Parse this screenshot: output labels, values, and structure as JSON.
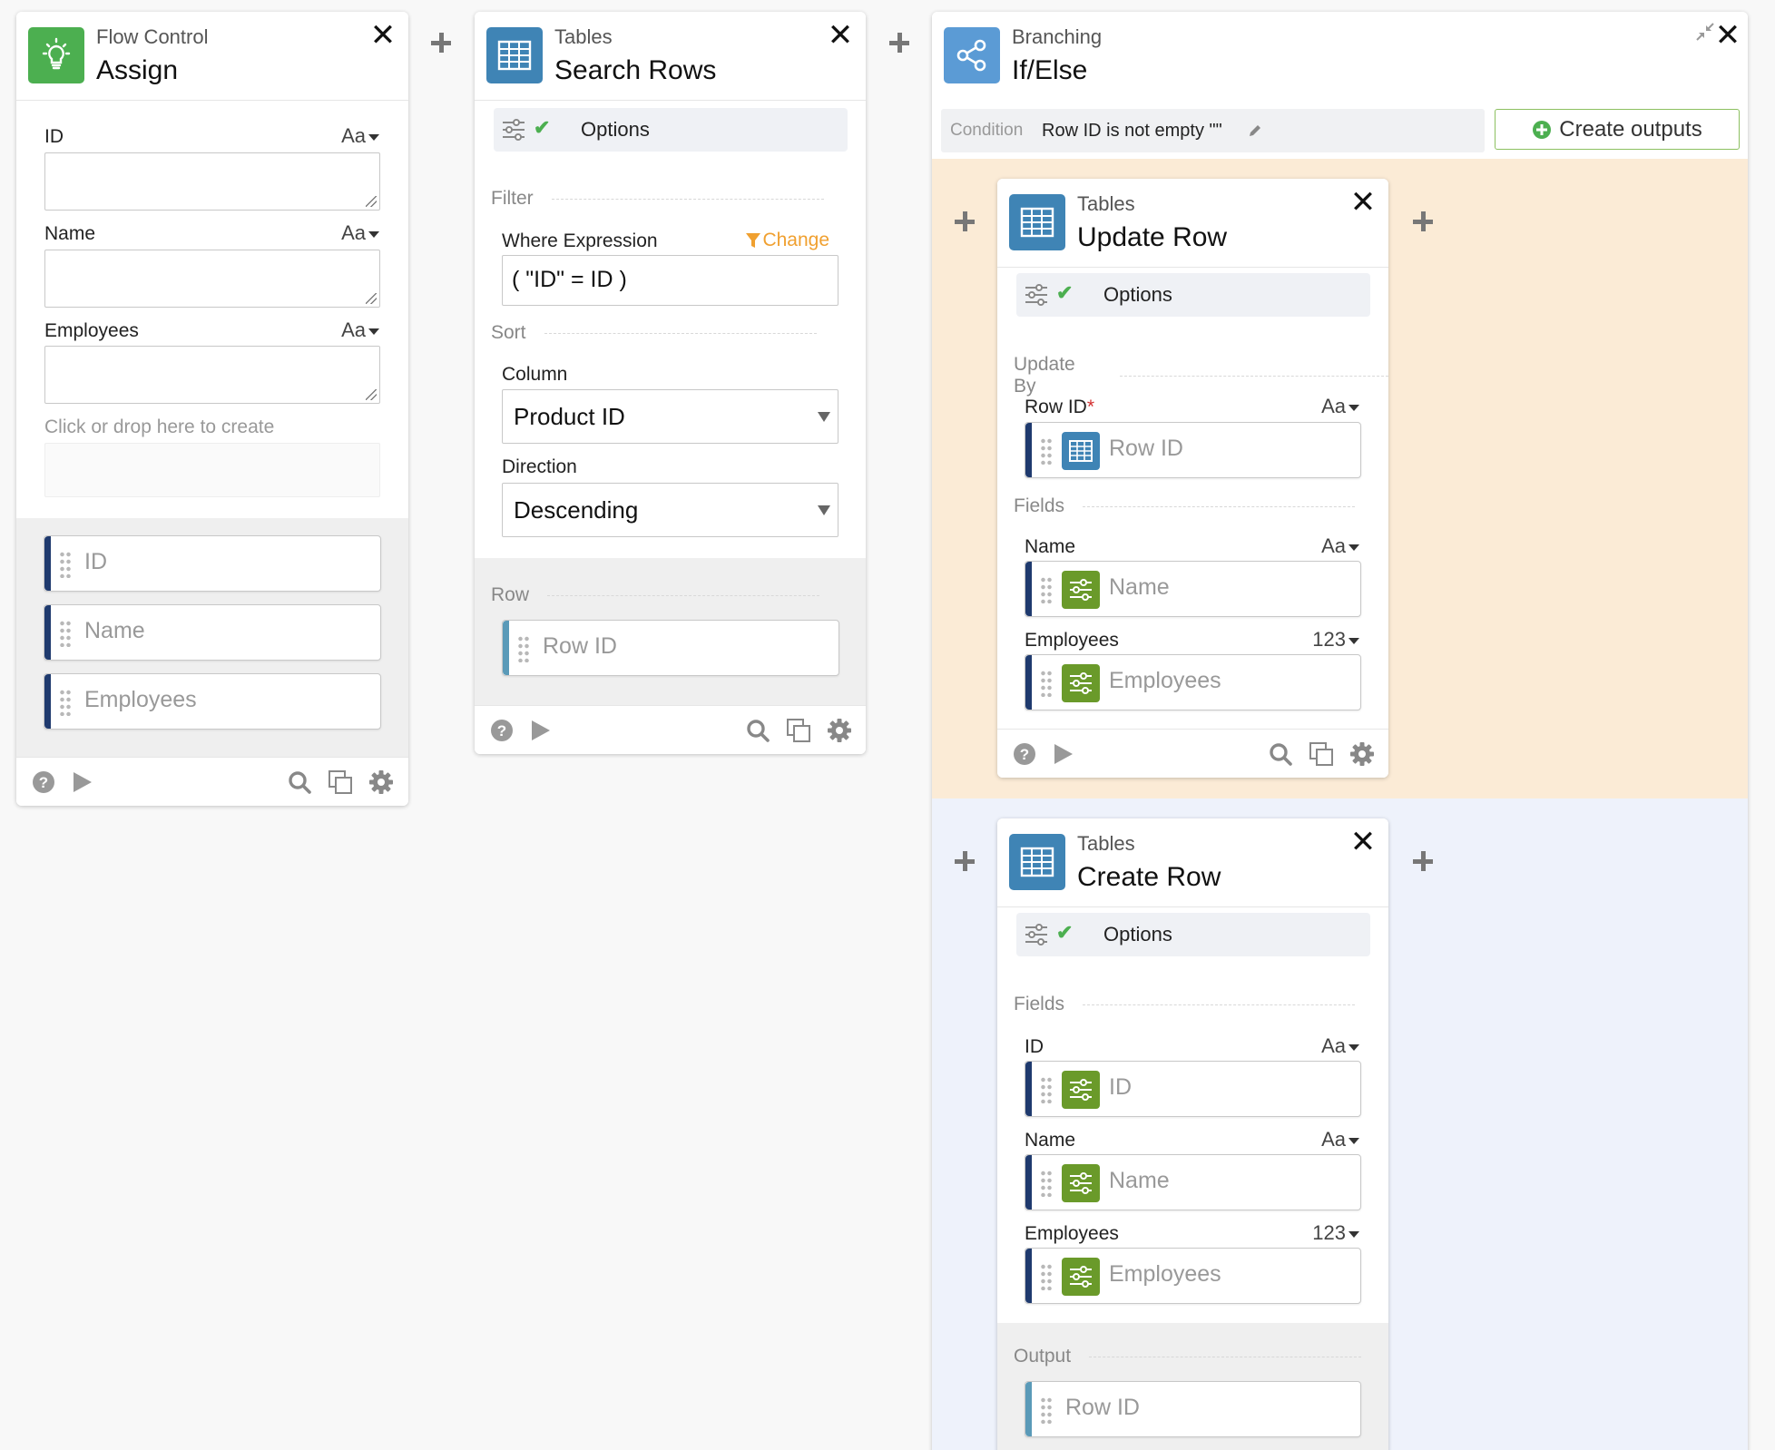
{
  "assign": {
    "category": "Flow Control",
    "title": "Assign",
    "fields": [
      {
        "label": "ID",
        "type": "Aa"
      },
      {
        "label": "Name",
        "type": "Aa"
      },
      {
        "label": "Employees",
        "type": "Aa"
      }
    ],
    "drop_hint": "Click or drop here to create",
    "outputs": [
      "ID",
      "Name",
      "Employees"
    ]
  },
  "search": {
    "category": "Tables",
    "title": "Search Rows",
    "options_label": "Options",
    "filter_label": "Filter",
    "where_label": "Where Expression",
    "change_label": "Change",
    "where_value": "( \"ID\" = ID )",
    "sort_label": "Sort",
    "column_label": "Column",
    "column_value": "Product ID",
    "direction_label": "Direction",
    "direction_value": "Descending",
    "row_label": "Row",
    "row_output": "Row ID"
  },
  "branch": {
    "category": "Branching",
    "title": "If/Else",
    "condition_label": "Condition",
    "condition_value": "Row ID is not empty \"\"",
    "create_outputs": "Create outputs"
  },
  "update": {
    "category": "Tables",
    "title": "Update Row",
    "options_label": "Options",
    "update_by_label": "Update By",
    "row_id_label": "Row ID",
    "required_mark": "*",
    "row_id_type": "Aa",
    "row_id_value": "Row ID",
    "fields_label": "Fields",
    "fields": [
      {
        "label": "Name",
        "type": "Aa",
        "value": "Name"
      },
      {
        "label": "Employees",
        "type": "123",
        "value": "Employees"
      }
    ]
  },
  "create": {
    "category": "Tables",
    "title": "Create Row",
    "options_label": "Options",
    "fields_label": "Fields",
    "fields": [
      {
        "label": "ID",
        "type": "Aa",
        "value": "ID"
      },
      {
        "label": "Name",
        "type": "Aa",
        "value": "Name"
      },
      {
        "label": "Employees",
        "type": "123",
        "value": "Employees"
      }
    ],
    "output_label": "Output",
    "output_value": "Row ID"
  },
  "colors": {
    "flow_green": "#4caf50",
    "table_blue": "#3f84b5",
    "branch_blue": "#5b9bd5",
    "var_green": "#6a9a2a",
    "navy": "#1f3a6e",
    "teal": "#5a9ab8",
    "orange": "#f0a030",
    "if_bg": "#fbebd6",
    "else_bg": "#eef2fb"
  },
  "icons": [
    "lightbulb-icon",
    "table-icon",
    "share-icon",
    "close-icon",
    "plus-icon",
    "sliders-icon",
    "check-icon",
    "filter-icon",
    "help-icon",
    "play-icon",
    "search-icon",
    "copy-icon",
    "gear-icon",
    "collapse-icon",
    "pencil-icon",
    "grip-icon"
  ]
}
